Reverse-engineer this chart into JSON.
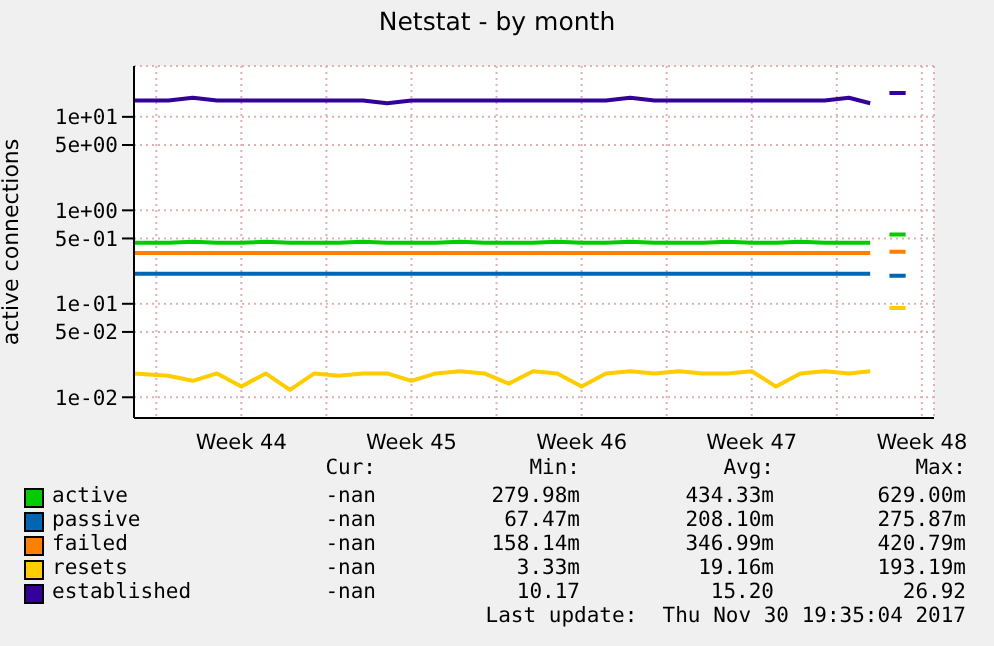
{
  "chart_data": {
    "type": "line",
    "title": "Netstat - by month",
    "ylabel": "active connections",
    "log": "y",
    "grid": true,
    "legend": "bottom",
    "x": [
      "2017-10-29T02:00",
      "2017-10-30T12:00",
      "2017-10-31T12:00",
      "2017-11-01T12:00",
      "2017-11-02T12:00",
      "2017-11-03T12:00",
      "2017-11-04T12:00",
      "2017-11-05T12:00",
      "2017-11-06T12:00",
      "2017-11-07T12:00",
      "2017-11-08T12:00",
      "2017-11-09T12:00",
      "2017-11-10T12:00",
      "2017-11-11T12:00",
      "2017-11-12T12:00",
      "2017-11-13T12:00",
      "2017-11-14T12:00",
      "2017-11-15T12:00",
      "2017-11-16T12:00",
      "2017-11-17T12:00",
      "2017-11-18T12:00",
      "2017-11-19T12:00",
      "2017-11-20T12:00",
      "2017-11-21T12:00",
      "2017-11-22T12:00",
      "2017-11-23T12:00",
      "2017-11-24T12:00",
      "2017-11-25T12:00",
      "2017-11-26T12:00",
      "2017-11-27T12:00",
      "2017-11-28T09:00",
      "2017-11-28T21:00",
      "2017-11-29T04:00",
      "2017-11-29T20:00"
    ],
    "xlim": [
      "2017-10-29T02:00",
      "2017-12-01T00:00"
    ],
    "xticks": [
      {
        "value": "2017-10-30",
        "label": null
      },
      {
        "value": "2017-11-02T12:00",
        "label": "Week 44"
      },
      {
        "value": "2017-11-06",
        "label": null
      },
      {
        "value": "2017-11-09T12:00",
        "label": "Week 45"
      },
      {
        "value": "2017-11-13",
        "label": null
      },
      {
        "value": "2017-11-16T12:00",
        "label": "Week 46"
      },
      {
        "value": "2017-11-20",
        "label": null
      },
      {
        "value": "2017-11-23T12:00",
        "label": "Week 47"
      },
      {
        "value": "2017-11-27",
        "label": null
      },
      {
        "value": "2017-11-30T12:00",
        "label": "Week 48"
      }
    ],
    "ylim": [
      0.006,
      35
    ],
    "yticks": [
      {
        "value": 0.01,
        "label": "1e-02"
      },
      {
        "value": 0.05,
        "label": "5e-02"
      },
      {
        "value": 0.1,
        "label": "1e-01"
      },
      {
        "value": 0.5,
        "label": "5e-01"
      },
      {
        "value": 1,
        "label": "1e+00"
      },
      {
        "value": 5,
        "label": "5e+00"
      },
      {
        "value": 10,
        "label": "1e+01"
      }
    ],
    "series": [
      {
        "name": "active",
        "color": "#00cc00",
        "values": [
          0.45,
          0.45,
          0.46,
          0.45,
          0.45,
          0.46,
          0.45,
          0.45,
          0.45,
          0.46,
          0.45,
          0.45,
          0.45,
          0.46,
          0.45,
          0.45,
          0.45,
          0.46,
          0.45,
          0.45,
          0.46,
          0.45,
          0.45,
          0.45,
          0.46,
          0.45,
          0.45,
          0.46,
          0.45,
          0.45,
          0.45,
          null,
          0.55,
          0.55
        ]
      },
      {
        "name": "passive",
        "color": "#0066b3",
        "values": [
          0.21,
          0.21,
          0.21,
          0.21,
          0.21,
          0.21,
          0.21,
          0.21,
          0.21,
          0.21,
          0.21,
          0.21,
          0.21,
          0.21,
          0.21,
          0.21,
          0.21,
          0.21,
          0.21,
          0.21,
          0.21,
          0.21,
          0.21,
          0.21,
          0.21,
          0.21,
          0.21,
          0.21,
          0.21,
          0.21,
          0.21,
          null,
          0.2,
          0.2
        ]
      },
      {
        "name": "failed",
        "color": "#ff8000",
        "values": [
          0.35,
          0.35,
          0.35,
          0.35,
          0.35,
          0.35,
          0.35,
          0.35,
          0.35,
          0.35,
          0.35,
          0.35,
          0.35,
          0.35,
          0.35,
          0.35,
          0.35,
          0.35,
          0.35,
          0.35,
          0.35,
          0.35,
          0.35,
          0.35,
          0.35,
          0.35,
          0.35,
          0.35,
          0.35,
          0.35,
          0.35,
          null,
          0.36,
          0.36
        ]
      },
      {
        "name": "resets",
        "color": "#ffcc00",
        "values": [
          0.018,
          0.017,
          0.015,
          0.018,
          0.013,
          0.018,
          0.012,
          0.018,
          0.017,
          0.018,
          0.018,
          0.015,
          0.018,
          0.019,
          0.018,
          0.014,
          0.019,
          0.018,
          0.013,
          0.018,
          0.019,
          0.018,
          0.019,
          0.018,
          0.018,
          0.019,
          0.013,
          0.018,
          0.019,
          0.018,
          0.019,
          null,
          0.09,
          0.09
        ]
      },
      {
        "name": "established",
        "color": "#330099",
        "values": [
          15,
          15,
          16,
          15,
          15,
          15,
          15,
          15,
          15,
          15,
          14,
          15,
          15,
          15,
          15,
          15,
          15,
          15,
          15,
          15,
          16,
          15,
          15,
          15,
          15,
          15,
          15,
          15,
          15,
          16,
          14,
          null,
          18,
          18
        ]
      }
    ],
    "annotations": [
      "Cur:",
      "Min:",
      "Avg:",
      "Max:",
      "-nan",
      "279.98m",
      "434.33m",
      "629.00m",
      "-nan",
      "67.47m",
      "208.10m",
      "275.87m",
      "-nan",
      "158.14m",
      "346.99m",
      "420.79m",
      "-nan",
      "3.33m",
      "19.16m",
      "193.19m",
      "-nan",
      "10.17",
      "15.20",
      "26.92",
      "Last update:  Thu Nov 30 19:35:04 2017"
    ]
  }
}
